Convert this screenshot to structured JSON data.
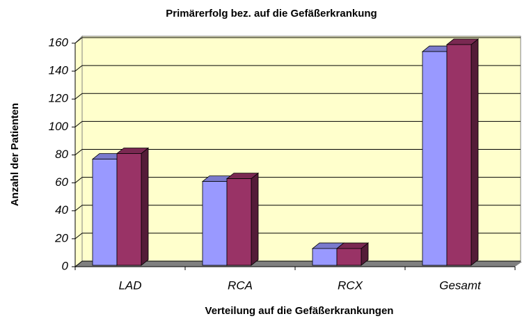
{
  "chart_data": {
    "type": "bar3d",
    "title": "Primärerfolg bez. auf die Gefäßerkrankung",
    "x_label": "Verteilung auf die Gefäßerkrankungen",
    "y_label": "Anzahl der Patienten",
    "categories": [
      "LAD",
      "RCA",
      "RCX",
      "Gesamt"
    ],
    "series": [
      {
        "color": "#9999ff",
        "values": [
          77,
          61,
          13,
          154
        ]
      },
      {
        "color": "#993366",
        "values": [
          81,
          63,
          13,
          159
        ]
      }
    ],
    "ylim": [
      0,
      160
    ],
    "yticks": [
      0,
      20,
      40,
      60,
      80,
      100,
      120,
      140,
      160
    ],
    "grid": true
  }
}
